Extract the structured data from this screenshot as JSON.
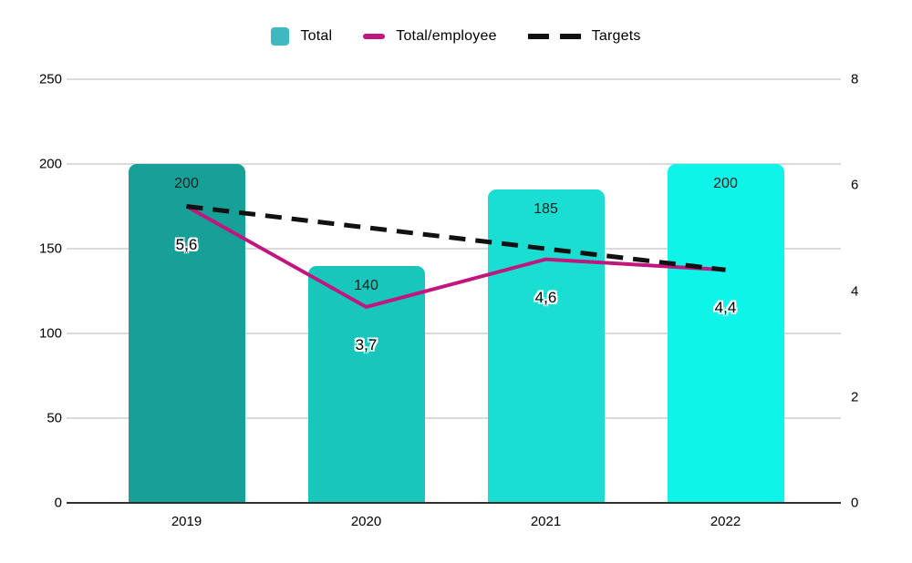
{
  "chart_data": {
    "type": "combo",
    "categories": [
      "2019",
      "2020",
      "2021",
      "2022"
    ],
    "series": [
      {
        "name": "Total",
        "type": "bar",
        "axis": "left",
        "values": [
          200,
          140,
          185,
          200
        ],
        "labels": [
          "200",
          "140",
          "185",
          "200"
        ],
        "colors": [
          "#16a098",
          "#19c6bb",
          "#1bded3",
          "#0ef4e9"
        ]
      },
      {
        "name": "Total/employee",
        "type": "line",
        "axis": "right",
        "values": [
          5.6,
          3.7,
          4.6,
          4.4
        ],
        "labels": [
          "5,6",
          "3,7",
          "4,6",
          "4,4"
        ],
        "color": "#c0167d"
      },
      {
        "name": "Targets",
        "type": "dashed-line",
        "axis": "right",
        "values": [
          5.6,
          5.2,
          4.8,
          4.4
        ],
        "labels": [],
        "color": "#111111"
      }
    ],
    "left_axis": {
      "min": 0,
      "max": 250,
      "ticks": [
        0,
        50,
        100,
        150,
        200,
        250
      ]
    },
    "right_axis": {
      "min": 0,
      "max": 8,
      "ticks": [
        0,
        2,
        4,
        6,
        8
      ]
    },
    "grid": true,
    "legend_position": "top",
    "style": {
      "grid_color": "#dadada",
      "baseline_color": "#2e2e2e",
      "text_color": "#000000",
      "legend_swatch_color": "#41b8c1",
      "background": "#ffffff"
    }
  }
}
